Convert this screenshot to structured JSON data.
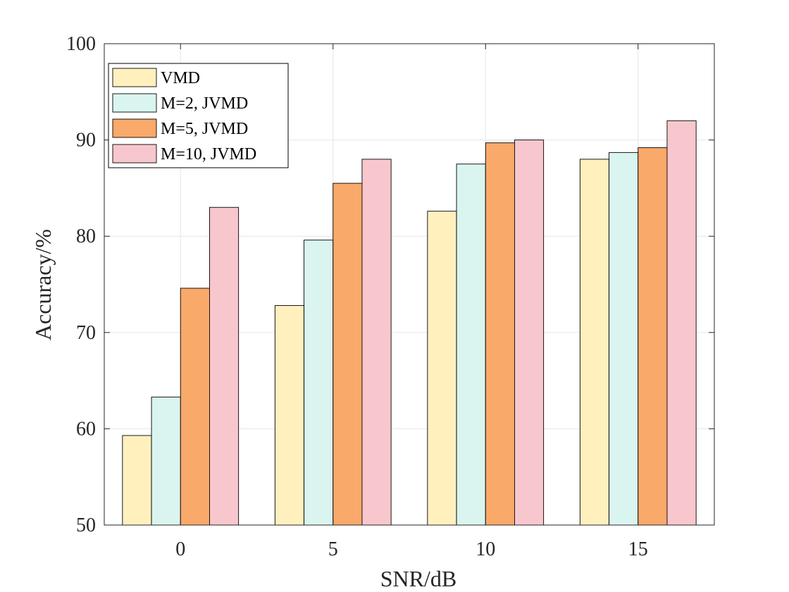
{
  "chart_data": {
    "type": "bar",
    "title": "",
    "xlabel": "SNR/dB",
    "ylabel": "Accuracy/%",
    "ylim": [
      50,
      100
    ],
    "yticks": [
      50,
      60,
      70,
      80,
      90,
      100
    ],
    "categories": [
      "0",
      "5",
      "10",
      "15"
    ],
    "grid": true,
    "legend_position": "top-left",
    "series": [
      {
        "name": "VMD",
        "color": "#FFF0BE",
        "values": [
          59.3,
          72.8,
          82.6,
          88.0
        ]
      },
      {
        "name": "M=2, JVMD",
        "color": "#DAF5F0",
        "values": [
          63.3,
          79.6,
          87.5,
          88.7
        ]
      },
      {
        "name": "M=5, JVMD",
        "color": "#F9A96A",
        "values": [
          74.6,
          85.5,
          89.7,
          89.2
        ]
      },
      {
        "name": "M=10, JVMD",
        "color": "#F8C7CD",
        "values": [
          83.0,
          88.0,
          90.0,
          92.0
        ]
      }
    ]
  }
}
